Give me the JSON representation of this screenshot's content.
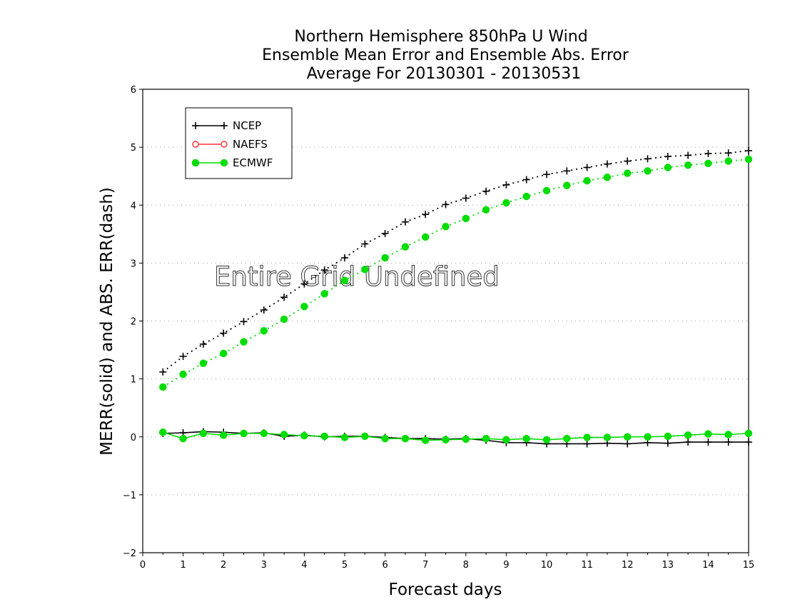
{
  "chart_data": {
    "type": "line",
    "title": [
      "Northern Hemisphere 850hPa U Wind",
      "Ensemble Mean Error and Ensemble Abs. Error",
      "Average For 20130301 - 20130531"
    ],
    "xlabel": "Forecast days",
    "ylabel": "MERR(solid) and ABS. ERR(dash)",
    "annotation": "Entire Grid Undefined",
    "xlim": [
      0,
      15
    ],
    "ylim": [
      -2,
      6
    ],
    "xticks": [
      "0",
      "1",
      "2",
      "3",
      "4",
      "5",
      "6",
      "7",
      "8",
      "9",
      "10",
      "11",
      "12",
      "13",
      "14",
      "15"
    ],
    "yticks": [
      "−2",
      "−1",
      "0",
      "1",
      "2",
      "3",
      "4",
      "5",
      "6"
    ],
    "grid": "horizontal dotted",
    "legend_position": "top-left",
    "x": [
      0.5,
      1,
      1.5,
      2,
      2.5,
      3,
      3.5,
      4,
      4.5,
      5,
      5.5,
      6,
      6.5,
      7,
      7.5,
      8,
      8.5,
      9,
      9.5,
      10,
      10.5,
      11,
      11.5,
      12,
      12.5,
      13,
      13.5,
      14,
      14.5,
      15
    ],
    "series": [
      {
        "name": "NCEP",
        "color": "#000000",
        "marker": "plus",
        "abs_err": [
          1.12,
          1.39,
          1.6,
          1.79,
          1.99,
          2.19,
          2.41,
          2.64,
          2.88,
          3.09,
          3.33,
          3.51,
          3.71,
          3.84,
          4.01,
          4.12,
          4.24,
          4.35,
          4.44,
          4.53,
          4.59,
          4.65,
          4.71,
          4.76,
          4.8,
          4.84,
          4.86,
          4.89,
          4.9,
          4.94
        ],
        "mean_err": [
          0.06,
          0.07,
          0.09,
          0.08,
          0.06,
          0.07,
          0.01,
          0.03,
          0.0,
          0.01,
          0.01,
          -0.01,
          -0.03,
          -0.03,
          -0.04,
          -0.03,
          -0.06,
          -0.1,
          -0.1,
          -0.12,
          -0.12,
          -0.12,
          -0.11,
          -0.12,
          -0.1,
          -0.11,
          -0.09,
          -0.09,
          -0.09,
          -0.09
        ]
      },
      {
        "name": "NAEFS",
        "color": "#ff3030",
        "marker": "open-circle",
        "abs_err": [],
        "mean_err": []
      },
      {
        "name": "ECMWF",
        "color": "#00dd00",
        "marker": "filled-circle",
        "abs_err": [
          0.86,
          1.08,
          1.27,
          1.44,
          1.64,
          1.83,
          2.03,
          2.25,
          2.47,
          2.7,
          2.89,
          3.09,
          3.28,
          3.45,
          3.63,
          3.77,
          3.92,
          4.04,
          4.15,
          4.25,
          4.34,
          4.42,
          4.48,
          4.55,
          4.59,
          4.65,
          4.69,
          4.72,
          4.76,
          4.79
        ],
        "mean_err": [
          0.08,
          -0.03,
          0.06,
          0.03,
          0.06,
          0.06,
          0.04,
          0.02,
          0.01,
          -0.01,
          0.01,
          -0.03,
          -0.03,
          -0.06,
          -0.05,
          -0.04,
          -0.03,
          -0.05,
          -0.03,
          -0.05,
          -0.03,
          -0.01,
          -0.01,
          0.0,
          0.0,
          0.01,
          0.03,
          0.05,
          0.04,
          0.06
        ]
      }
    ]
  }
}
